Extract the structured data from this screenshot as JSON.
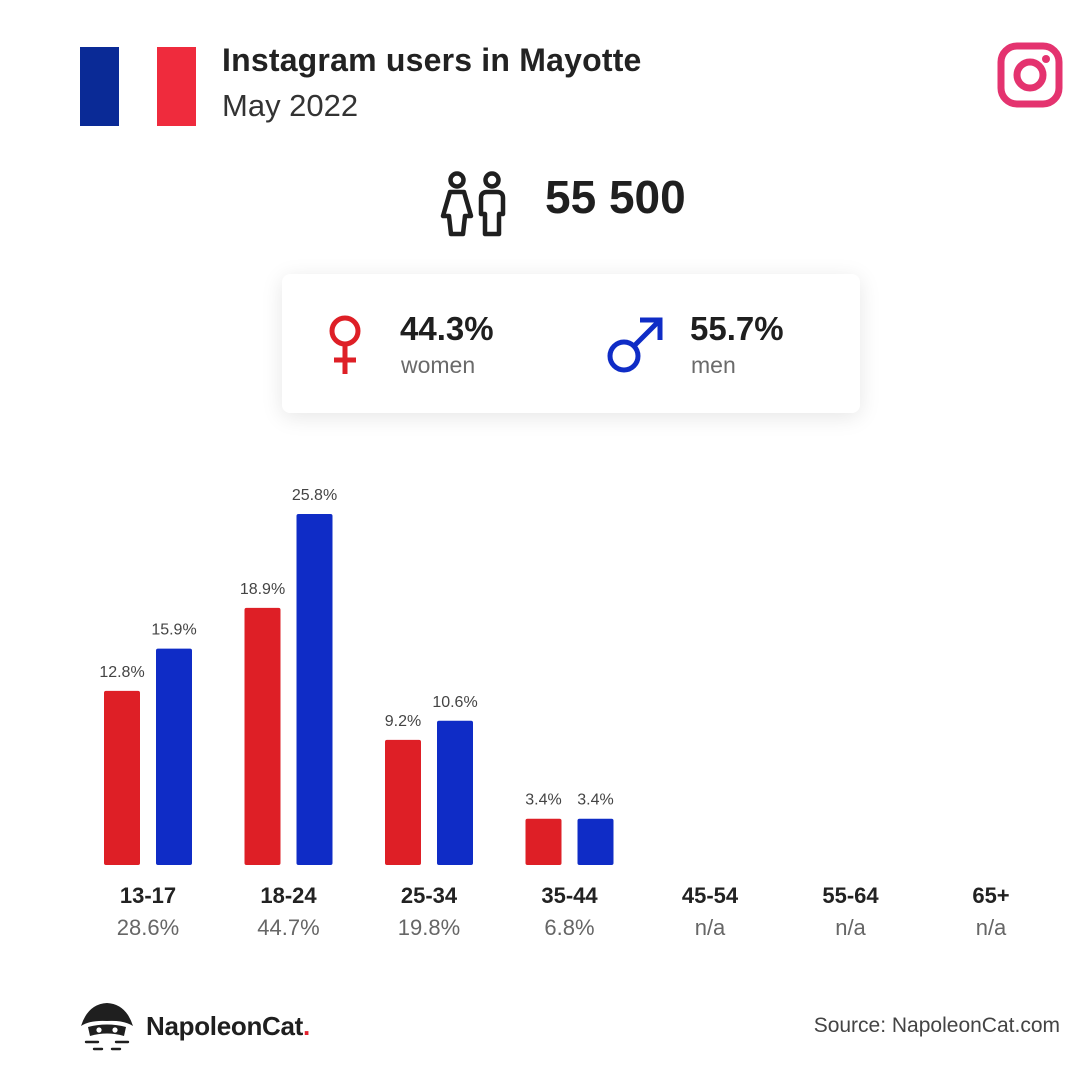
{
  "header": {
    "title": "Instagram users in Mayotte",
    "subtitle": "May 2022",
    "flag_colors": [
      "#0a2a96",
      "#ffffff",
      "#ef2b3d"
    ],
    "platform_icon": "instagram-icon",
    "platform_color": "#e4336f"
  },
  "summary": {
    "total_users": "55 500",
    "icon": "people-icon"
  },
  "gender": {
    "women": {
      "pct": "44.3%",
      "label": "women",
      "icon": "female-symbol-icon",
      "color": "#de1f26"
    },
    "men": {
      "pct": "55.7%",
      "label": "men",
      "icon": "male-symbol-icon",
      "color": "#0f2cc6"
    }
  },
  "chart_data": {
    "type": "bar",
    "categories": [
      "13-17",
      "18-24",
      "25-34",
      "35-44",
      "45-54",
      "55-64",
      "65+"
    ],
    "category_totals": [
      "28.6%",
      "44.7%",
      "19.8%",
      "6.8%",
      "n/a",
      "n/a",
      "n/a"
    ],
    "series": [
      {
        "values": [
          12.8,
          18.9,
          9.2,
          3.4,
          null,
          null,
          null
        ],
        "labels": [
          "12.8%",
          "18.9%",
          "9.2%",
          "3.4%",
          "",
          "",
          ""
        ],
        "color": "#de1f26"
      },
      {
        "values": [
          15.9,
          25.8,
          10.6,
          3.4,
          null,
          null,
          null
        ],
        "labels": [
          "15.9%",
          "25.8%",
          "10.6%",
          "3.4%",
          "",
          "",
          ""
        ],
        "color": "#0f2cc6"
      }
    ],
    "ylim": [
      0,
      25.8
    ],
    "grid": false
  },
  "footer": {
    "brand_name": "NapoleonCat",
    "brand_dot": ".",
    "brand_icon": "napoleoncat-logo-icon",
    "source": "Source: NapoleonCat.com"
  }
}
